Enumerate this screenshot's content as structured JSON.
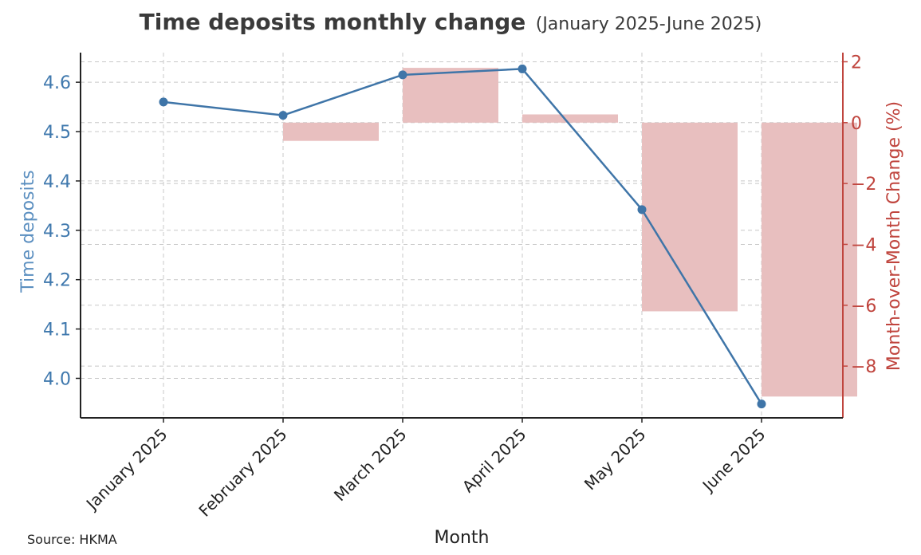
{
  "chart_data": {
    "type": "bar+line",
    "title": "Time deposits monthly change",
    "subtitle": "(January 2025-June 2025)",
    "xlabel": "Month",
    "ylabel_left": "Time deposits",
    "ylabel_right": "Month-over-Month Change (%)",
    "source": "Source: HKMA",
    "categories": [
      "January 2025",
      "February 2025",
      "March 2025",
      "April 2025",
      "May 2025",
      "June 2025"
    ],
    "line_series": {
      "axis": "left",
      "values": [
        4.56,
        4.533,
        4.615,
        4.627,
        4.342,
        3.948
      ]
    },
    "bar_series": {
      "axis": "right",
      "values": [
        null,
        -0.6,
        1.8,
        0.27,
        -6.2,
        -9.0
      ]
    },
    "ylim_left": [
      3.92,
      4.66
    ],
    "ylim_right": [
      -9.7,
      2.3
    ],
    "yticks_left": [
      "4.0",
      "4.1",
      "4.2",
      "4.3",
      "4.4",
      "4.5",
      "4.6"
    ],
    "yticks_left_values": [
      4.0,
      4.1,
      4.2,
      4.3,
      4.4,
      4.5,
      4.6
    ],
    "yticks_right": [
      "2",
      "0",
      "−2",
      "−4",
      "−6",
      "−8"
    ],
    "yticks_right_values": [
      2,
      0,
      -2,
      -4,
      -6,
      -8
    ],
    "grid": true,
    "colors": {
      "line": "#3f75a8",
      "bar": "#e8bfbf",
      "left_axis": "#3f78ad",
      "right_axis": "#c0453e"
    }
  }
}
